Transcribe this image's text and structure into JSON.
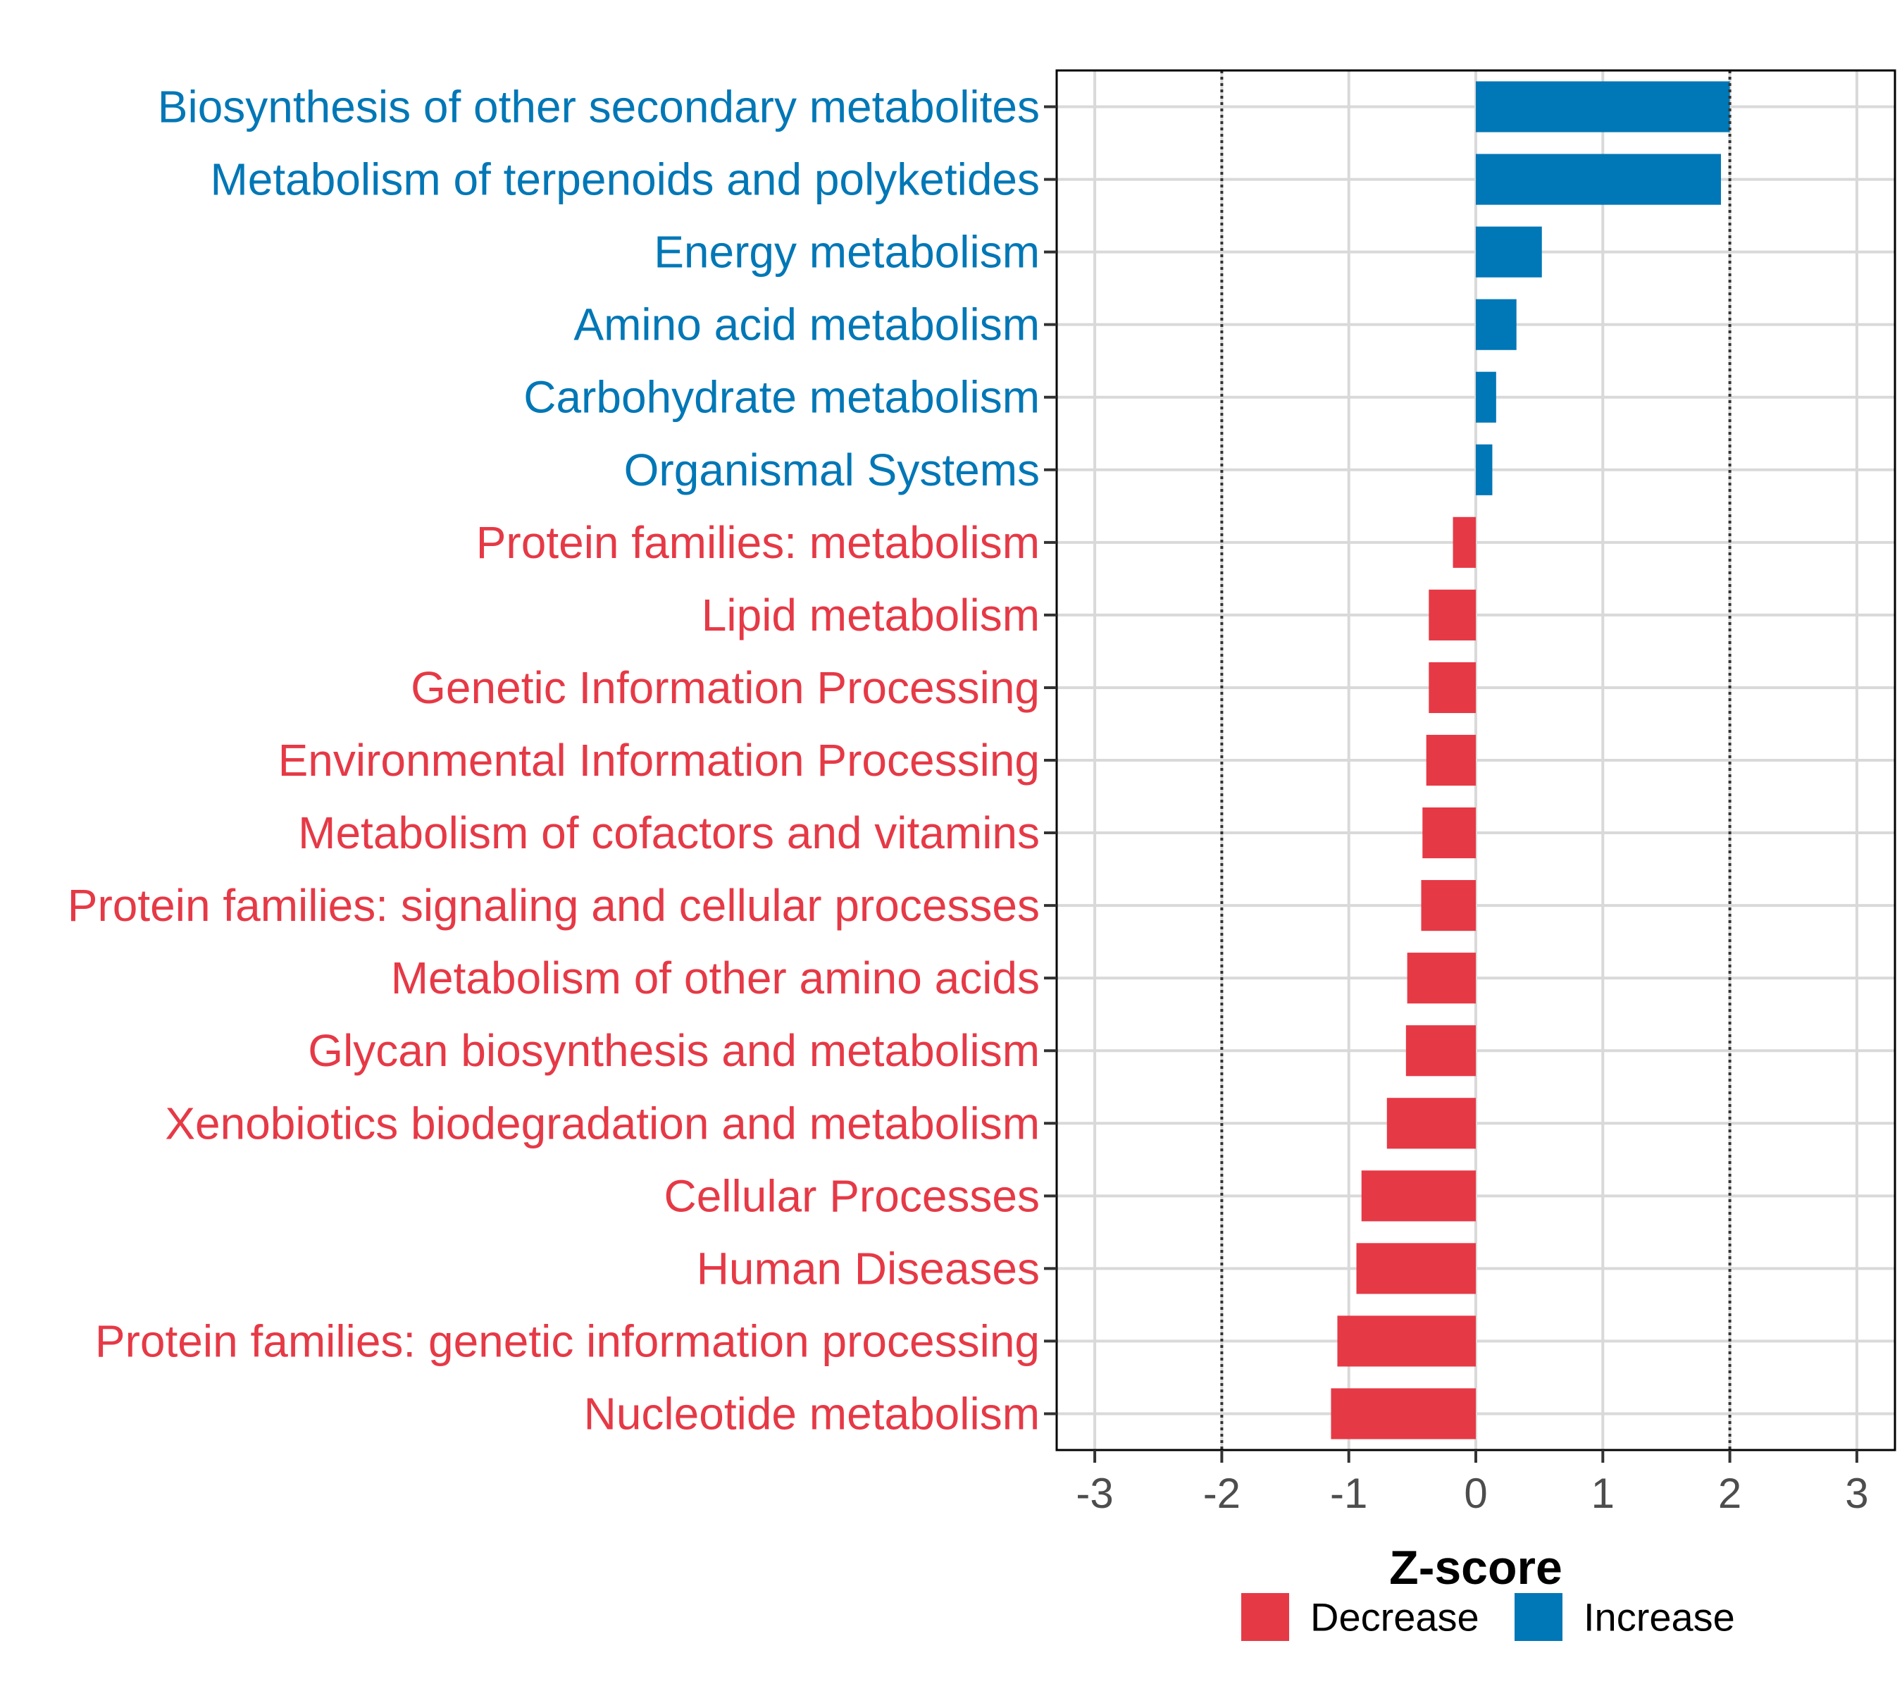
{
  "chart_data": {
    "type": "bar",
    "orientation": "horizontal",
    "title": "",
    "xlabel": "Z-score",
    "ylabel": "",
    "xlim": [
      -3.3,
      3.3
    ],
    "xticks": [
      "-3",
      "-2",
      "-1",
      "0",
      "1",
      "2",
      "3"
    ],
    "xtick_values": [
      -3,
      -2,
      -1,
      0,
      1,
      2,
      3
    ],
    "threshold_lines": [
      -2,
      2
    ],
    "grid": true,
    "legend_position": "bottom",
    "colors": {
      "Decrease": "#e63946",
      "Increase": "#0077b6"
    },
    "legend": [
      {
        "label": "Decrease",
        "color": "#e63946"
      },
      {
        "label": "Increase",
        "color": "#0077b6"
      }
    ],
    "categories": [
      "Biosynthesis of other secondary metabolites",
      "Metabolism of terpenoids and polyketides",
      "Energy metabolism",
      "Amino acid metabolism",
      "Carbohydrate metabolism",
      "Organismal Systems",
      "Protein families: metabolism",
      "Lipid metabolism",
      "Genetic Information Processing",
      "Environmental Information Processing",
      "Metabolism of cofactors and vitamins",
      "Protein families: signaling and cellular processes",
      "Metabolism of other amino acids",
      "Glycan biosynthesis and metabolism",
      "Xenobiotics biodegradation and metabolism",
      "Cellular Processes",
      "Human Diseases",
      "Protein families: genetic information processing",
      "Nucleotide metabolism"
    ],
    "values": [
      2.0,
      1.93,
      0.52,
      0.32,
      0.16,
      0.13,
      -0.18,
      -0.37,
      -0.37,
      -0.39,
      -0.42,
      -0.43,
      -0.54,
      -0.55,
      -0.7,
      -0.9,
      -0.94,
      -1.09,
      -1.14
    ],
    "groups": [
      "Increase",
      "Increase",
      "Increase",
      "Increase",
      "Increase",
      "Increase",
      "Decrease",
      "Decrease",
      "Decrease",
      "Decrease",
      "Decrease",
      "Decrease",
      "Decrease",
      "Decrease",
      "Decrease",
      "Decrease",
      "Decrease",
      "Decrease",
      "Decrease"
    ]
  }
}
